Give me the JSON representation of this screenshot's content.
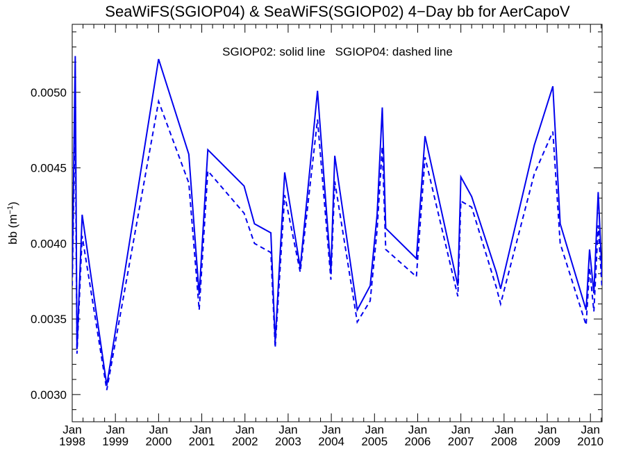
{
  "chart_data": {
    "type": "line",
    "title": "SeaWiFS(SGIOP04) & SeaWiFS(SGIOP02) 4−Day bb for AerCapoV",
    "annotation": "SGIOP02: solid line   SGIOP04: dashed line",
    "ylabel": "bb (m",
    "ylabel_sup": "−1",
    "ylabel_close": ")",
    "xlim": [
      1998.0,
      2010.27
    ],
    "ylim": [
      0.00282,
      0.00545
    ],
    "yticks": [
      {
        "value": 0.003,
        "label": "0.0030"
      },
      {
        "value": 0.0035,
        "label": "0.0035"
      },
      {
        "value": 0.004,
        "label": "0.0040"
      },
      {
        "value": 0.0045,
        "label": "0.0045"
      },
      {
        "value": 0.005,
        "label": "0.0050"
      }
    ],
    "xticks": [
      {
        "value": 1998,
        "month": "Jan",
        "year": "1998"
      },
      {
        "value": 1999,
        "month": "Jan",
        "year": "1999"
      },
      {
        "value": 2000,
        "month": "Jan",
        "year": "2000"
      },
      {
        "value": 2001,
        "month": "Jan",
        "year": "2001"
      },
      {
        "value": 2002,
        "month": "Jan",
        "year": "2002"
      },
      {
        "value": 2003,
        "month": "Jan",
        "year": "2003"
      },
      {
        "value": 2004,
        "month": "Jan",
        "year": "2004"
      },
      {
        "value": 2005,
        "month": "Jan",
        "year": "2005"
      },
      {
        "value": 2006,
        "month": "Jan",
        "year": "2006"
      },
      {
        "value": 2007,
        "month": "Jan",
        "year": "2007"
      },
      {
        "value": 2008,
        "month": "Jan",
        "year": "2008"
      },
      {
        "value": 2009,
        "month": "Jan",
        "year": "2009"
      },
      {
        "value": 2010,
        "month": "Jan",
        "year": "2010"
      }
    ],
    "series": [
      {
        "name": "SGIOP02",
        "style": "solid",
        "color": "#0000ee",
        "points": [
          [
            1998.0,
            0.00378
          ],
          [
            1998.07,
            0.00524
          ],
          [
            1998.11,
            0.0033
          ],
          [
            1998.23,
            0.00419
          ],
          [
            1998.8,
            0.00306
          ],
          [
            2000.0,
            0.00522
          ],
          [
            2000.7,
            0.00459
          ],
          [
            2000.94,
            0.00366
          ],
          [
            2001.14,
            0.00462
          ],
          [
            2001.98,
            0.00438
          ],
          [
            2002.22,
            0.00413
          ],
          [
            2002.6,
            0.00407
          ],
          [
            2002.7,
            0.00335
          ],
          [
            2002.92,
            0.00447
          ],
          [
            2003.28,
            0.00384
          ],
          [
            2003.68,
            0.00501
          ],
          [
            2003.99,
            0.00382
          ],
          [
            2004.08,
            0.00458
          ],
          [
            2004.6,
            0.00356
          ],
          [
            2004.9,
            0.00372
          ],
          [
            2005.06,
            0.00419
          ],
          [
            2005.18,
            0.0049
          ],
          [
            2005.26,
            0.0041
          ],
          [
            2005.97,
            0.0039
          ],
          [
            2006.17,
            0.00471
          ],
          [
            2006.93,
            0.00372
          ],
          [
            2007.0,
            0.00444
          ],
          [
            2007.25,
            0.00431
          ],
          [
            2007.82,
            0.00381
          ],
          [
            2007.92,
            0.0037
          ],
          [
            2008.7,
            0.00465
          ],
          [
            2009.13,
            0.00504
          ],
          [
            2009.3,
            0.00413
          ],
          [
            2009.9,
            0.00356
          ],
          [
            2009.98,
            0.00396
          ],
          [
            2010.08,
            0.00367
          ],
          [
            2010.18,
            0.00434
          ],
          [
            2010.27,
            0.00378
          ]
        ]
      },
      {
        "name": "SGIOP04",
        "style": "dashed",
        "color": "#0000ee",
        "points": [
          [
            1998.0,
            0.00372
          ],
          [
            1998.07,
            0.00488
          ],
          [
            1998.11,
            0.00327
          ],
          [
            1998.23,
            0.00405
          ],
          [
            1998.8,
            0.00303
          ],
          [
            2000.0,
            0.00494
          ],
          [
            2000.7,
            0.0044
          ],
          [
            2000.94,
            0.00356
          ],
          [
            2001.14,
            0.00448
          ],
          [
            2001.98,
            0.0042
          ],
          [
            2002.22,
            0.004
          ],
          [
            2002.6,
            0.00394
          ],
          [
            2002.7,
            0.00331
          ],
          [
            2002.92,
            0.00432
          ],
          [
            2003.28,
            0.00381
          ],
          [
            2003.68,
            0.00482
          ],
          [
            2003.99,
            0.00376
          ],
          [
            2004.08,
            0.00441
          ],
          [
            2004.6,
            0.00348
          ],
          [
            2004.9,
            0.00362
          ],
          [
            2005.06,
            0.00409
          ],
          [
            2005.18,
            0.00464
          ],
          [
            2005.26,
            0.00396
          ],
          [
            2005.97,
            0.00378
          ],
          [
            2006.17,
            0.00457
          ],
          [
            2006.93,
            0.00365
          ],
          [
            2007.0,
            0.00428
          ],
          [
            2007.25,
            0.00424
          ],
          [
            2007.82,
            0.00371
          ],
          [
            2007.92,
            0.0036
          ],
          [
            2008.7,
            0.00446
          ],
          [
            2009.13,
            0.00474
          ],
          [
            2009.3,
            0.004
          ],
          [
            2009.9,
            0.00346
          ],
          [
            2009.98,
            0.00384
          ],
          [
            2010.08,
            0.00355
          ],
          [
            2010.18,
            0.00412
          ],
          [
            2010.27,
            0.0037
          ]
        ]
      }
    ]
  }
}
